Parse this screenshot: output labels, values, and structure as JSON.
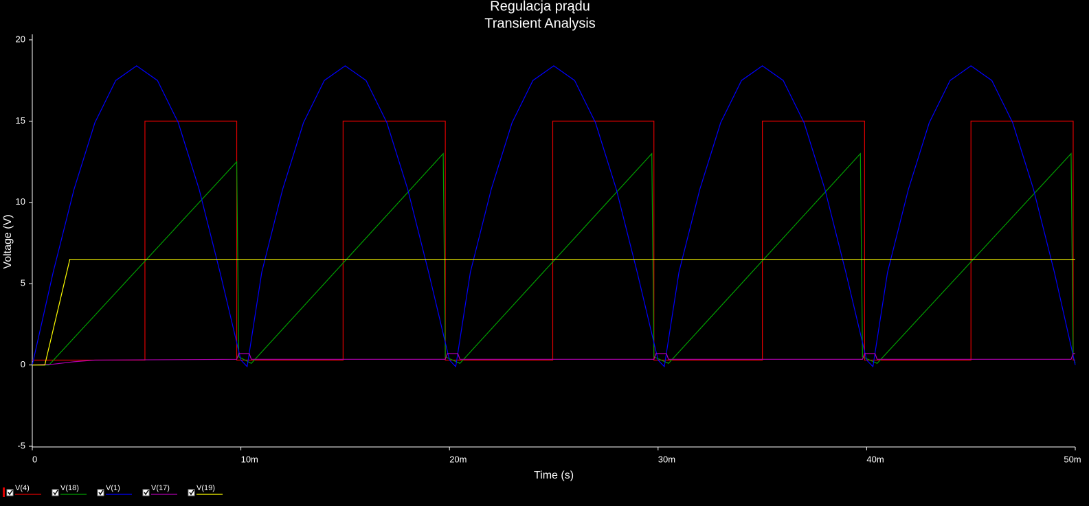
{
  "chart_data": {
    "type": "line",
    "title": "Regulacja prądu",
    "subtitle": "Transient Analysis",
    "x_label": "Time (s)",
    "y_label": "Voltage (V)",
    "xlim": [
      0,
      0.05
    ],
    "xticks": [
      0,
      {
        "value": 0.01,
        "label": "10m"
      },
      {
        "value": 0.02,
        "label": "20m"
      },
      {
        "value": 0.03,
        "label": "30m"
      },
      {
        "value": 0.04,
        "label": "40m"
      },
      {
        "value": 0.05,
        "label": "50m"
      }
    ],
    "ylim": [
      -5,
      20
    ],
    "yticks": [
      -5,
      0,
      5,
      10,
      15,
      20
    ],
    "grid": false,
    "legend": "bottom-left",
    "series": [
      {
        "name": "V(4)",
        "color": "#e00000",
        "x": [
          0,
          0.0054,
          0.0054,
          0.0098,
          0.0098,
          0.0149,
          0.0149,
          0.0198,
          0.0198,
          0.02495,
          0.02495,
          0.0298,
          0.0298,
          0.035,
          0.035,
          0.0399,
          0.0399,
          0.045,
          0.045,
          0.0499,
          0.0499,
          0.05
        ],
        "values": [
          0.3,
          0.3,
          15,
          15,
          0.3,
          0.3,
          15,
          15,
          0.3,
          0.3,
          15,
          15,
          0.3,
          0.3,
          15,
          15,
          0.3,
          0.3,
          15,
          15,
          0.3,
          0.3
        ]
      },
      {
        "name": "V(18)",
        "color": "#00a000",
        "x": [
          0,
          0.0008,
          0.0098,
          0.0099,
          0.0105,
          0.0197,
          0.0198,
          0.0205,
          0.0297,
          0.0298,
          0.0305,
          0.0397,
          0.0398,
          0.0405,
          0.0498,
          0.0499,
          0.05
        ],
        "values": [
          0,
          0,
          12.5,
          0.5,
          0.1,
          13,
          0.5,
          0.1,
          13,
          0.5,
          0.1,
          13,
          0.5,
          0.1,
          13,
          0.5,
          0.1
        ]
      },
      {
        "name": "V(1)",
        "color": "#0000ff",
        "x": [
          0,
          0.001,
          0.002,
          0.003,
          0.004,
          0.005,
          0.006,
          0.007,
          0.008,
          0.009,
          0.01,
          0.0103,
          0.011,
          0.012,
          0.013,
          0.014,
          0.015,
          0.016,
          0.017,
          0.018,
          0.019,
          0.02,
          0.0203,
          0.021,
          0.022,
          0.023,
          0.024,
          0.025,
          0.026,
          0.027,
          0.028,
          0.029,
          0.03,
          0.0303,
          0.031,
          0.032,
          0.033,
          0.034,
          0.035,
          0.036,
          0.037,
          0.038,
          0.039,
          0.04,
          0.0403,
          0.041,
          0.042,
          0.043,
          0.044,
          0.045,
          0.046,
          0.047,
          0.048,
          0.049,
          0.05
        ],
        "values": [
          0,
          5.7,
          10.8,
          14.9,
          17.5,
          18.4,
          17.5,
          14.9,
          10.8,
          5.7,
          0.3,
          -0.1,
          5.7,
          10.8,
          14.9,
          17.5,
          18.4,
          17.5,
          14.9,
          10.8,
          5.7,
          0.3,
          -0.1,
          5.7,
          10.8,
          14.9,
          17.5,
          18.4,
          17.5,
          14.9,
          10.8,
          5.7,
          0.3,
          -0.1,
          5.7,
          10.8,
          14.9,
          17.5,
          18.4,
          17.5,
          14.9,
          10.8,
          5.7,
          0.3,
          -0.1,
          5.7,
          10.8,
          14.9,
          17.5,
          18.4,
          17.5,
          14.9,
          10.8,
          5.7,
          0
        ]
      },
      {
        "name": "V(17)",
        "color": "#b000b0",
        "x": [
          0,
          0.001,
          0.002,
          0.003,
          0.0098,
          0.0099,
          0.0104,
          0.0105,
          0.0198,
          0.0199,
          0.0204,
          0.0205,
          0.0298,
          0.0299,
          0.0304,
          0.0305,
          0.0398,
          0.0399,
          0.0404,
          0.0405,
          0.0498,
          0.0499,
          0.05
        ],
        "values": [
          0,
          0.05,
          0.2,
          0.3,
          0.35,
          0.7,
          0.7,
          0.35,
          0.35,
          0.7,
          0.7,
          0.35,
          0.35,
          0.7,
          0.7,
          0.35,
          0.35,
          0.7,
          0.7,
          0.35,
          0.35,
          0.7,
          0.7
        ]
      },
      {
        "name": "V(19)",
        "color": "#ffff00",
        "x": [
          0,
          0.0006,
          0.0018,
          0.05
        ],
        "values": [
          0,
          0,
          6.5,
          6.5
        ]
      }
    ]
  }
}
